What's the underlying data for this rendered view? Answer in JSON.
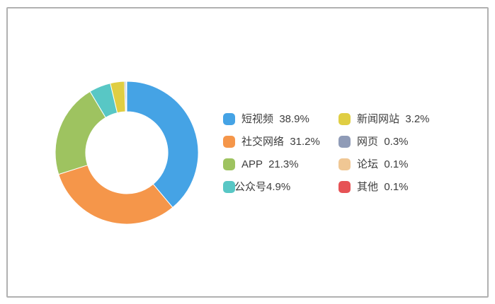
{
  "panel": {
    "border_color": "#b1b1b1",
    "background": "#ffffff"
  },
  "chart_data": {
    "type": "pie",
    "subtype": "donut",
    "title": "",
    "legend_position": "right-center",
    "legend_columns": 2,
    "legend_column_break": 4,
    "start_angle_deg": 90,
    "clockwise": true,
    "inner_radius_ratio": 0.57,
    "categories": [
      "短视频",
      "社交网络",
      "APP",
      "公众号",
      "新闻网站",
      "网页",
      "论坛",
      "其他"
    ],
    "values": [
      38.9,
      31.2,
      21.3,
      4.9,
      3.2,
      0.3,
      0.1,
      0.1
    ],
    "series": [
      {
        "name": "短视频",
        "value": 38.9,
        "color": "#45a3e5",
        "legend_label": "短视频  38.9%"
      },
      {
        "name": "社交网络",
        "value": 31.2,
        "color": "#f5964a",
        "legend_label": "社交网络  31.2%"
      },
      {
        "name": "APP",
        "value": 21.3,
        "color": "#9ec360",
        "legend_label": "APP  21.3%"
      },
      {
        "name": "公众号",
        "value": 4.9,
        "color": "#58c7c5",
        "legend_label": "公众号4.9%",
        "tight": true
      },
      {
        "name": "新闻网站",
        "value": 3.2,
        "color": "#e0ce43",
        "legend_label": "新闻网站  3.2%"
      },
      {
        "name": "网页",
        "value": 0.3,
        "color": "#8f9bb7",
        "legend_label": "网页  0.3%"
      },
      {
        "name": "论坛",
        "value": 0.1,
        "color": "#f0c794",
        "legend_label": "论坛  0.1%"
      },
      {
        "name": "其他",
        "value": 0.1,
        "color": "#e65255",
        "legend_label": "其他  0.1%"
      }
    ]
  }
}
